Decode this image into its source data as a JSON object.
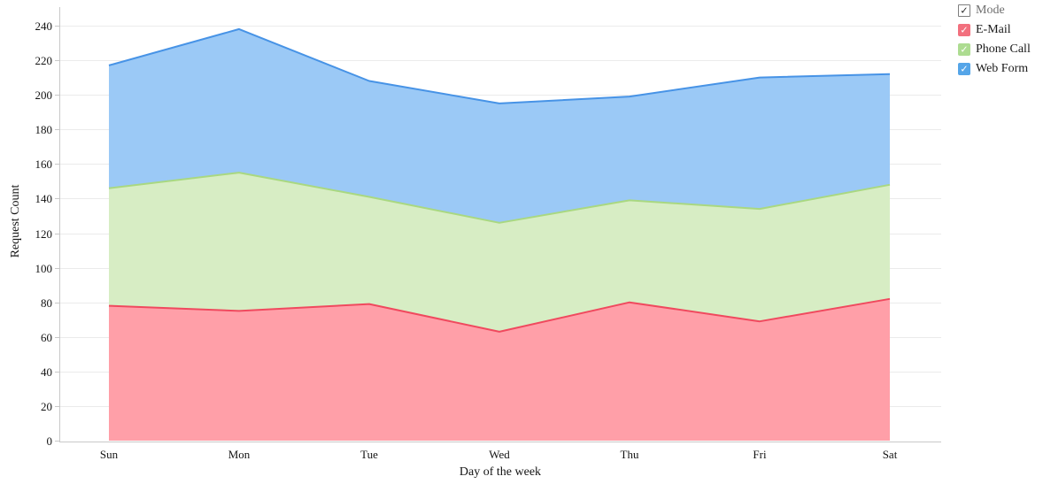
{
  "chart_data": {
    "type": "area",
    "stacked": true,
    "title": "",
    "xlabel": "Day of the week",
    "ylabel": "Request Count",
    "categories": [
      "Sun",
      "Mon",
      "Tue",
      "Wed",
      "Thu",
      "Fri",
      "Sat"
    ],
    "series": [
      {
        "name": "E-Mail",
        "values": [
          78,
          75,
          79,
          63,
          80,
          69,
          82
        ],
        "fill_color": "#FF9FA8",
        "line_color": "#F0495E",
        "swatch_color": "#F2707E"
      },
      {
        "name": "Phone Call",
        "values": [
          68,
          80,
          62,
          63,
          59,
          65,
          66
        ],
        "fill_color": "#D7EDC4",
        "line_color": "#A9D881",
        "swatch_color": "#ADDC91"
      },
      {
        "name": "Web Form",
        "values": [
          71,
          83,
          67,
          69,
          60,
          76,
          64
        ],
        "fill_color": "#9BC9F6",
        "line_color": "#4793E6",
        "swatch_color": "#55A5E8"
      }
    ],
    "stacked_totals": [
      217,
      238,
      208,
      195,
      199,
      210,
      212
    ],
    "y_ticks": [
      0,
      20,
      40,
      60,
      80,
      100,
      120,
      140,
      160,
      180,
      200,
      220,
      240
    ],
    "ylim": [
      0,
      240
    ],
    "grid": true,
    "legend_position": "top-right"
  },
  "legend": {
    "mode": {
      "label": "Mode",
      "checked": true
    },
    "check_glyph": "✓",
    "items": [
      {
        "label": "E-Mail",
        "checked": true,
        "color": "#F2707E"
      },
      {
        "label": "Phone Call",
        "checked": true,
        "color": "#ADDC91"
      },
      {
        "label": "Web Form",
        "checked": true,
        "color": "#55A5E8"
      }
    ]
  }
}
